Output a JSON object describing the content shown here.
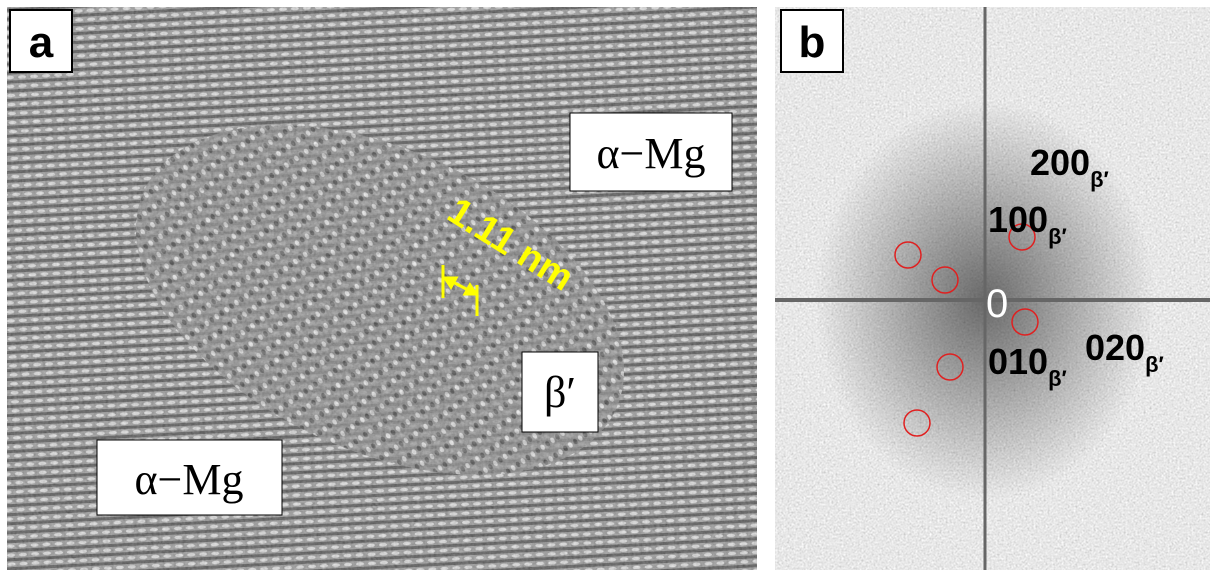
{
  "panels": [
    {
      "label": "a",
      "annotations": [
        "α−Mg",
        "α−Mg",
        "β′"
      ],
      "scale_label": "1.11 nm"
    },
    {
      "label": "b",
      "origin_label": "0",
      "spots": [
        {
          "index": "200",
          "subscript": "β′"
        },
        {
          "index": "100",
          "subscript": "β′"
        },
        {
          "index": "010",
          "subscript": "β′"
        },
        {
          "index": "020",
          "subscript": "β′"
        }
      ]
    }
  ]
}
